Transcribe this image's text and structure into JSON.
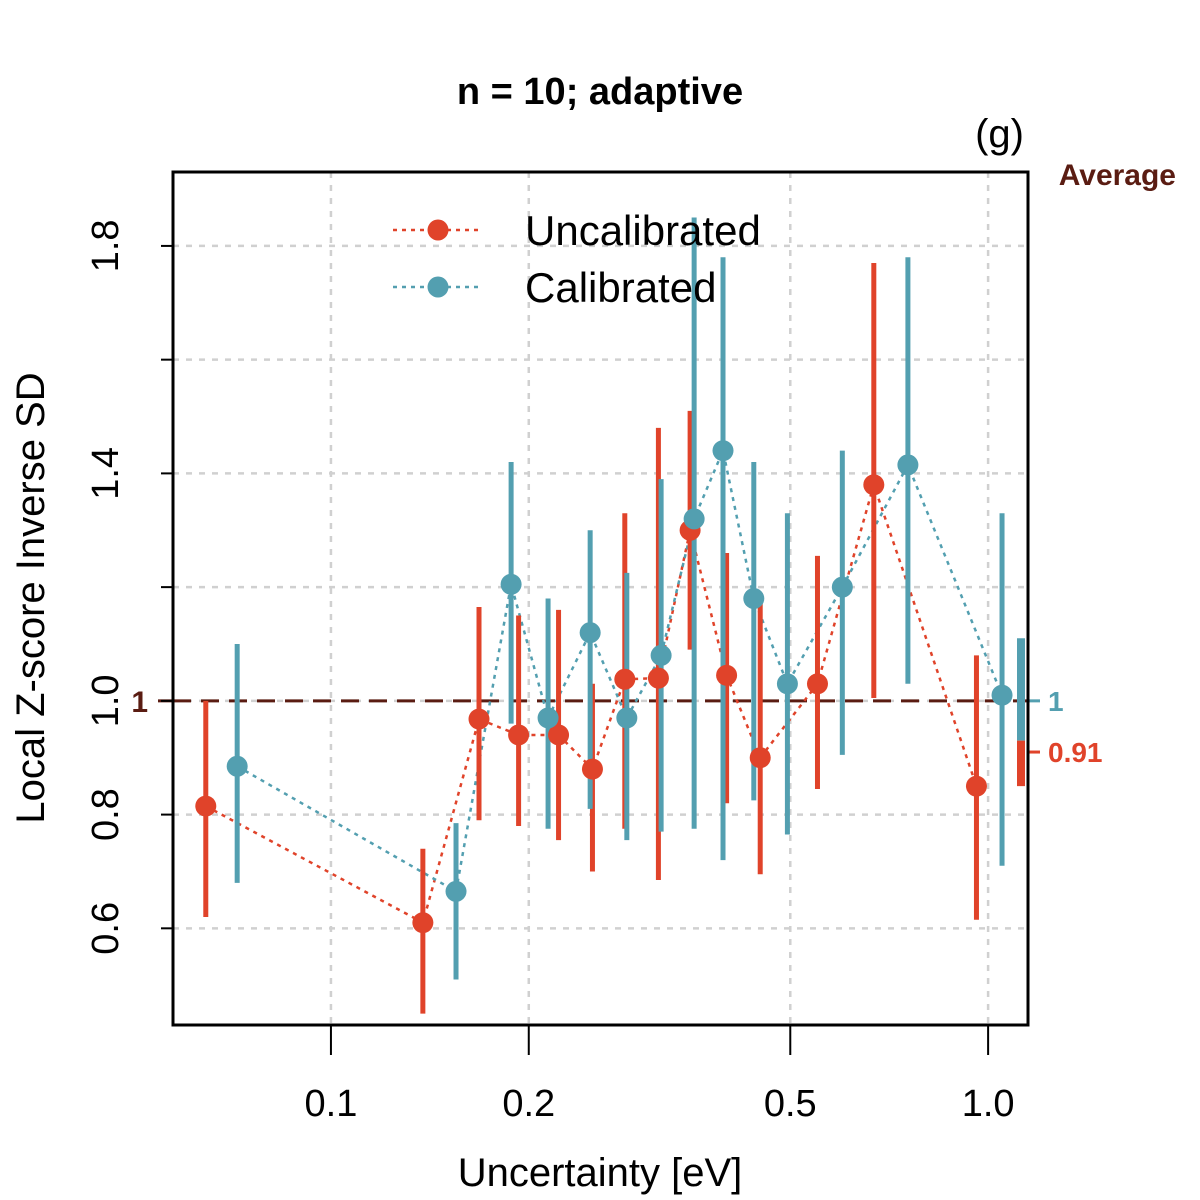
{
  "chart_data": {
    "type": "scatter",
    "title": "n = 10; adaptive",
    "panel_label": "(g)",
    "xlabel": "Uncertainty [eV]",
    "ylabel": "Local Z-score Inverse SD",
    "x_scale": "log",
    "xlim": [
      0.0575,
      1.15
    ],
    "ylim": [
      0.43,
      1.93
    ],
    "x_ticks": [
      0.1,
      0.2,
      0.5,
      1.0
    ],
    "x_tick_labels": [
      "0.1",
      "0.2",
      "0.5",
      "1.0"
    ],
    "y_ticks": [
      0.6,
      0.8,
      1.0,
      1.4,
      1.8
    ],
    "y_tick_labels": [
      "0.6",
      "0.8",
      "1.0",
      "1.4",
      "1.8"
    ],
    "y_grid": [
      0.6,
      0.8,
      1.0,
      1.2,
      1.4,
      1.6,
      1.8
    ],
    "reference_line": {
      "y": 1.0,
      "label": "1",
      "color": "#5a1c12"
    },
    "legend": {
      "position": "top-center",
      "entries": [
        {
          "name": "Uncalibrated",
          "color": "#e0432a"
        },
        {
          "name": "Calibrated",
          "color": "#539fb0"
        }
      ]
    },
    "average": {
      "title": "Average",
      "entries": [
        {
          "series": "Calibrated",
          "value": 1.0,
          "label": "1",
          "low": 0.93,
          "high": 1.11,
          "color": "#539fb0"
        },
        {
          "series": "Uncalibrated",
          "value": 0.91,
          "label": "0.91",
          "low": 0.85,
          "high": 0.93,
          "color": "#e0432a"
        }
      ]
    },
    "series": [
      {
        "name": "Uncalibrated",
        "color": "#e0432a",
        "x": [
          0.0645,
          0.138,
          0.168,
          0.193,
          0.222,
          0.25,
          0.28,
          0.315,
          0.352,
          0.4,
          0.45,
          0.55,
          0.67,
          0.96
        ],
        "y": [
          0.815,
          0.61,
          0.968,
          0.94,
          0.94,
          0.88,
          1.038,
          1.04,
          1.3,
          1.045,
          0.9,
          1.03,
          1.38,
          0.85
        ],
        "low": [
          0.62,
          0.45,
          0.79,
          0.78,
          0.755,
          0.7,
          0.775,
          0.685,
          1.09,
          0.82,
          0.695,
          0.845,
          1.005,
          0.615
        ],
        "high": [
          1.0,
          0.74,
          1.165,
          1.15,
          1.16,
          1.03,
          1.33,
          1.48,
          1.51,
          1.26,
          1.19,
          1.255,
          1.77,
          1.08
        ]
      },
      {
        "name": "Calibrated",
        "color": "#539fb0",
        "x": [
          0.072,
          0.155,
          0.188,
          0.214,
          0.248,
          0.282,
          0.318,
          0.357,
          0.395,
          0.44,
          0.495,
          0.6,
          0.755,
          1.05
        ],
        "y": [
          0.885,
          0.665,
          1.205,
          0.97,
          1.12,
          0.97,
          1.08,
          1.32,
          1.44,
          1.18,
          1.03,
          1.2,
          1.415,
          1.01
        ],
        "low": [
          0.68,
          0.51,
          0.96,
          0.775,
          0.81,
          0.755,
          0.77,
          0.775,
          0.72,
          0.825,
          0.765,
          0.905,
          1.03,
          0.71
        ],
        "high": [
          1.1,
          0.785,
          1.42,
          1.18,
          1.3,
          1.225,
          1.39,
          1.85,
          1.78,
          1.42,
          1.33,
          1.44,
          1.78,
          1.33
        ]
      }
    ]
  }
}
